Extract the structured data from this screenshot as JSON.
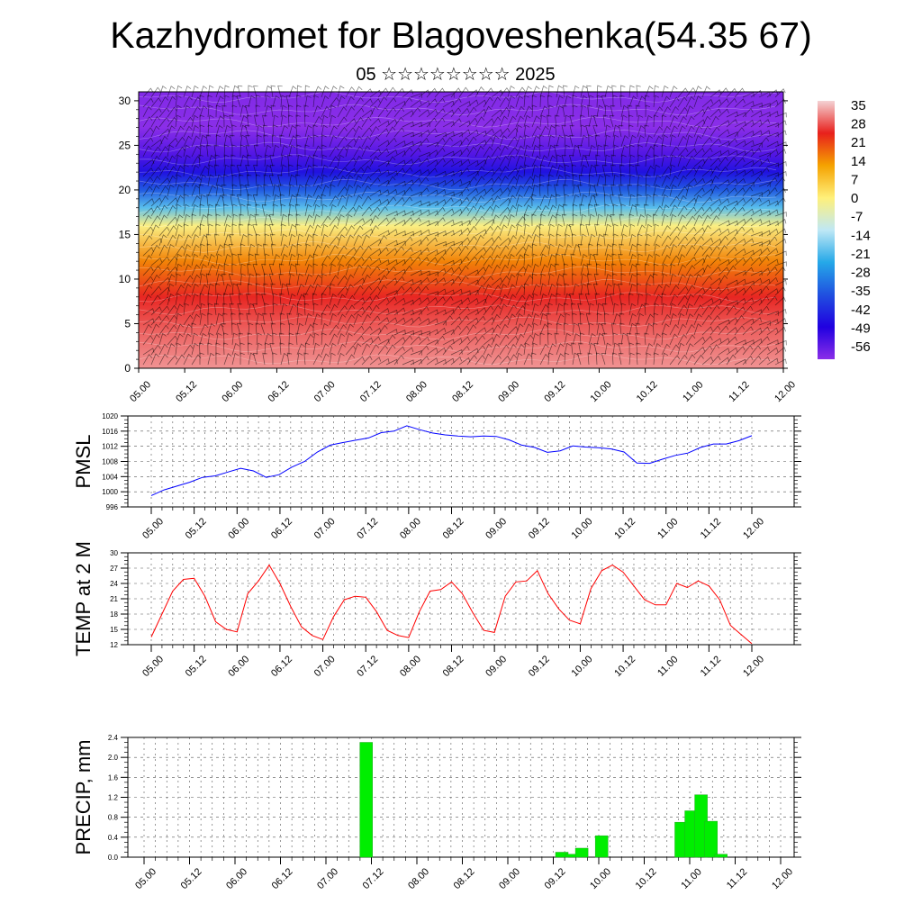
{
  "title": "Kazhydromet for Blagoveshenka(54.35 67)",
  "subtitle": "05 ☆☆☆☆☆☆☆☆ 2025",
  "chart_data": [
    {
      "type": "heatmap",
      "name": "upper-air temperature and wind cross-section",
      "x_ticks": [
        "05.00",
        "05.12",
        "06.00",
        "06.12",
        "07.00",
        "07.12",
        "08.00",
        "08.12",
        "09.00",
        "09.12",
        "10.00",
        "10.12",
        "11.00",
        "11.12",
        "12.00"
      ],
      "y_ticks": [
        "0",
        "5",
        "10",
        "15",
        "20",
        "25",
        "30"
      ],
      "ylim": [
        0,
        31
      ],
      "colorbar_labels": [
        "35",
        "28",
        "21",
        "14",
        "7",
        "0",
        "-7",
        "-14",
        "-21",
        "-28",
        "-35",
        "-42",
        "-49",
        "-56"
      ],
      "color_stops": [
        "#f4d2d4",
        "#e8201c",
        "#f5a200",
        "#fff07a",
        "#bfe8f5",
        "#25a8e8",
        "#2050e0",
        "#2000e0",
        "#8a2ee8"
      ],
      "profile_temperatures": {
        "heights": [
          0,
          4,
          8,
          12,
          16,
          18,
          20,
          22,
          24,
          27,
          31
        ],
        "values": [
          31,
          28,
          24,
          15,
          0,
          -18,
          -32,
          -42,
          -50,
          -56,
          -55
        ]
      },
      "wind_barbs": true
    },
    {
      "type": "line",
      "ylabel": "PMSL",
      "x_ticks": [
        "05.00",
        "05.12",
        "06.00",
        "06.12",
        "07.00",
        "07.12",
        "08.00",
        "08.12",
        "09.00",
        "09.12",
        "10.00",
        "10.12",
        "11.00",
        "11.12",
        "12.00"
      ],
      "y_ticks": [
        "996",
        "1000",
        "1004",
        "1008",
        "1012",
        "1016",
        "1020"
      ],
      "ylim": [
        996,
        1020
      ],
      "color": "#0000ff",
      "values": [
        999,
        1000.5,
        1001.5,
        1002.5,
        1003.8,
        1004.2,
        1005.2,
        1006.2,
        1005.5,
        1003.8,
        1004.5,
        1006.5,
        1008,
        1010.5,
        1012.3,
        1013,
        1013.6,
        1014.2,
        1015.6,
        1016,
        1017.4,
        1016.4,
        1015.5,
        1015,
        1014.7,
        1014.5,
        1014.7,
        1014.6,
        1013.7,
        1012.3,
        1011.7,
        1010.4,
        1010.8,
        1012.1,
        1011.8,
        1011.6,
        1011.3,
        1010.5,
        1007.6,
        1007.5,
        1008.6,
        1009.6,
        1010.2,
        1011.7,
        1012.6,
        1012.6,
        1013.5,
        1014.8
      ]
    },
    {
      "type": "line",
      "ylabel": "TEMP at 2 M",
      "x_ticks": [
        "05.00",
        "05.12",
        "06.00",
        "06.12",
        "07.00",
        "07.12",
        "08.00",
        "08.12",
        "09.00",
        "09.12",
        "10.00",
        "10.12",
        "11.00",
        "11.12",
        "12.00"
      ],
      "y_ticks": [
        "12",
        "15",
        "18",
        "21",
        "24",
        "27",
        "30"
      ],
      "ylim": [
        12,
        30
      ],
      "color": "#ff0000",
      "values": [
        13.5,
        18,
        22.5,
        24.8,
        25,
        21.5,
        16.5,
        15,
        14.5,
        22,
        24.5,
        27.6,
        24,
        19.5,
        15.5,
        13.8,
        13,
        17.5,
        20.8,
        21.5,
        21.3,
        18.5,
        14.8,
        13.8,
        13.4,
        18.5,
        22.5,
        22.8,
        24.3,
        22,
        18.2,
        14.8,
        14.4,
        21.5,
        24.3,
        24.5,
        26.5,
        22,
        19,
        16.8,
        16.1,
        23,
        26.5,
        27.6,
        26.2,
        23.5,
        20.8,
        19.8,
        19.8,
        24,
        23.2,
        24.5,
        23.5,
        20.8,
        15.8,
        14,
        12.2
      ]
    },
    {
      "type": "bar",
      "ylabel": "PRECIP, mm",
      "x_ticks": [
        "05.00",
        "05.12",
        "06.00",
        "06.12",
        "07.00",
        "07.12",
        "08.00",
        "08.12",
        "09.00",
        "09.12",
        "10.00",
        "10.12",
        "11.00",
        "11.12",
        "12.00"
      ],
      "y_ticks": [
        "0.0",
        "0.4",
        "0.8",
        "1.2",
        "1.6",
        "2.0",
        "2.4"
      ],
      "ylim": [
        0,
        2.4
      ],
      "color": "#00ee00",
      "bars": [
        {
          "x": 33.5,
          "value": 2.3
        },
        {
          "x": 63,
          "value": 0.1
        },
        {
          "x": 64.5,
          "value": 0.06
        },
        {
          "x": 66,
          "value": 0.18
        },
        {
          "x": 69,
          "value": 0.43
        },
        {
          "x": 81,
          "value": 0.7
        },
        {
          "x": 82.5,
          "value": 0.93
        },
        {
          "x": 84,
          "value": 1.25
        },
        {
          "x": 85.5,
          "value": 0.72
        },
        {
          "x": 87,
          "value": 0.06
        }
      ]
    }
  ]
}
